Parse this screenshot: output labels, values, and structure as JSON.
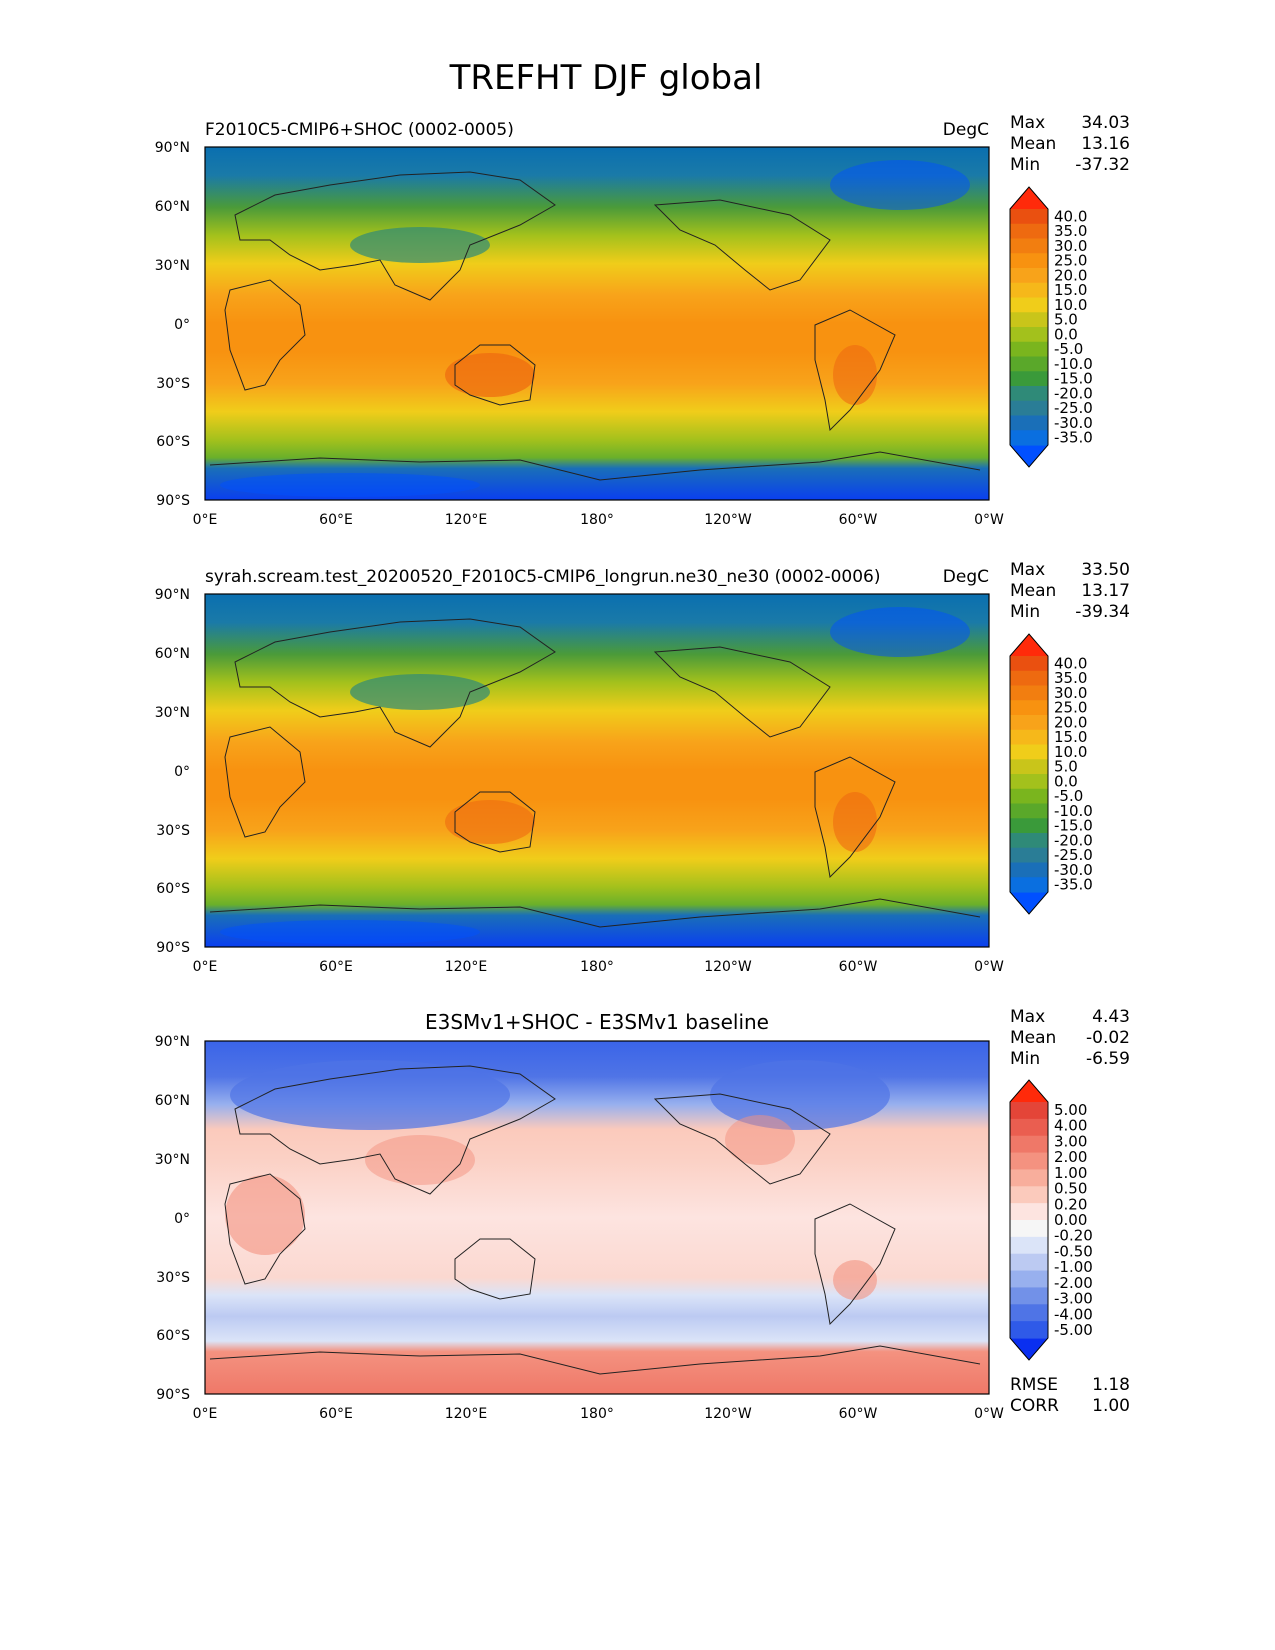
{
  "figure": {
    "title": "TREFHT DJF global"
  },
  "axis_ticks": {
    "lat": [
      "90°N",
      "60°N",
      "30°N",
      "0°",
      "30°S",
      "60°S",
      "90°S"
    ],
    "lon": [
      "0°E",
      "60°E",
      "120°E",
      "180°",
      "120°W",
      "60°W",
      "0°W"
    ]
  },
  "colors": {
    "abs_levels": [
      "#0050ff",
      "#0a6fe0",
      "#1a6fb8",
      "#2a7d96",
      "#2f8a78",
      "#3a9a3a",
      "#5aa82a",
      "#7ab51e",
      "#a3c11c",
      "#c9c51a",
      "#f0cd1a",
      "#f6b81a",
      "#f8a31a",
      "#f89210",
      "#f27e10",
      "#ee6a10",
      "#ea5010",
      "#ff2a0a"
    ],
    "diff_levels": [
      "#0a2ff0",
      "#2f5ae8",
      "#4f74e6",
      "#7291e8",
      "#98b0ee",
      "#bccaf2",
      "#dbe4f8",
      "#f6f6f6",
      "#fde4e0",
      "#fbcabc",
      "#f8ae9c",
      "#f49280",
      "#ef7868",
      "#ea5e50",
      "#e44538",
      "#ff2a0a"
    ]
  },
  "panels": [
    {
      "left_title": "F2010C5-CMIP6+SHOC (0002-0005)",
      "center_title": "",
      "units": "DegC",
      "stats": {
        "max": "34.03",
        "mean": "13.16",
        "min": "-37.32"
      },
      "colorbar_ticks": [
        "40.0",
        "35.0",
        "30.0",
        "25.0",
        "20.0",
        "15.0",
        "10.0",
        "5.0",
        "0.0",
        "-5.0",
        "-10.0",
        "-15.0",
        "-20.0",
        "-25.0",
        "-30.0",
        "-35.0"
      ]
    },
    {
      "left_title": "syrah.scream.test_20200520_F2010C5-CMIP6_longrun.ne30_ne30 (0002-0006)",
      "center_title": "",
      "units": "DegC",
      "stats": {
        "max": "33.50",
        "mean": "13.17",
        "min": "-39.34"
      },
      "colorbar_ticks": [
        "40.0",
        "35.0",
        "30.0",
        "25.0",
        "20.0",
        "15.0",
        "10.0",
        "5.0",
        "0.0",
        "-5.0",
        "-10.0",
        "-15.0",
        "-20.0",
        "-25.0",
        "-30.0",
        "-35.0"
      ]
    },
    {
      "left_title": "",
      "center_title": "E3SMv1+SHOC - E3SMv1 baseline",
      "units": "",
      "stats": {
        "max": "4.43",
        "mean": "-0.02",
        "min": "-6.59"
      },
      "colorbar_ticks": [
        "5.00",
        "4.00",
        "3.00",
        "2.00",
        "1.00",
        "0.50",
        "0.20",
        "0.00",
        "-0.20",
        "-0.50",
        "-1.00",
        "-2.00",
        "-3.00",
        "-4.00",
        "-5.00"
      ],
      "rmse": "1.18",
      "corr": "1.00"
    }
  ],
  "stat_labels": {
    "max": "Max",
    "mean": "Mean",
    "min": "Min",
    "rmse": "RMSE",
    "corr": "CORR"
  },
  "chart_data": [
    {
      "type": "heatmap",
      "title": "F2010C5-CMIP6+SHOC (0002-0005)",
      "variable": "TREFHT DJF",
      "units": "DegC",
      "x_ticks": [
        "0°E",
        "60°E",
        "120°E",
        "180°",
        "120°W",
        "60°W",
        "0°W"
      ],
      "y_ticks": [
        "90°N",
        "60°N",
        "30°N",
        "0°",
        "30°S",
        "60°S",
        "90°S"
      ],
      "lat_band_mean_degC": [
        {
          "lat": 80,
          "value": -25
        },
        {
          "lat": 60,
          "value": -15
        },
        {
          "lat": 45,
          "value": 0
        },
        {
          "lat": 30,
          "value": 12
        },
        {
          "lat": 15,
          "value": 25
        },
        {
          "lat": 0,
          "value": 27
        },
        {
          "lat": -15,
          "value": 27
        },
        {
          "lat": -30,
          "value": 22
        },
        {
          "lat": -45,
          "value": 12
        },
        {
          "lat": -60,
          "value": 2
        },
        {
          "lat": -75,
          "value": -20
        },
        {
          "lat": -85,
          "value": -30
        }
      ],
      "max": 34.03,
      "mean": 13.16,
      "min": -37.32
    },
    {
      "type": "heatmap",
      "title": "syrah.scream.test_20200520_F2010C5-CMIP6_longrun.ne30_ne30 (0002-0006)",
      "variable": "TREFHT DJF",
      "units": "DegC",
      "x_ticks": [
        "0°E",
        "60°E",
        "120°E",
        "180°",
        "120°W",
        "60°W",
        "0°W"
      ],
      "y_ticks": [
        "90°N",
        "60°N",
        "30°N",
        "0°",
        "30°S",
        "60°S",
        "90°S"
      ],
      "lat_band_mean_degC": [
        {
          "lat": 80,
          "value": -25
        },
        {
          "lat": 60,
          "value": -14
        },
        {
          "lat": 45,
          "value": 1
        },
        {
          "lat": 30,
          "value": 12
        },
        {
          "lat": 15,
          "value": 25
        },
        {
          "lat": 0,
          "value": 27
        },
        {
          "lat": -15,
          "value": 27
        },
        {
          "lat": -30,
          "value": 22
        },
        {
          "lat": -45,
          "value": 12
        },
        {
          "lat": -60,
          "value": 2
        },
        {
          "lat": -75,
          "value": -22
        },
        {
          "lat": -85,
          "value": -32
        }
      ],
      "max": 33.5,
      "mean": 13.17,
      "min": -39.34
    },
    {
      "type": "heatmap",
      "title": "E3SMv1+SHOC - E3SMv1 baseline",
      "variable": "TREFHT DJF difference",
      "units": "DegC",
      "x_ticks": [
        "0°E",
        "60°E",
        "120°E",
        "180°",
        "120°W",
        "60°W",
        "0°W"
      ],
      "y_ticks": [
        "90°N",
        "60°N",
        "30°N",
        "0°",
        "30°S",
        "60°S",
        "90°S"
      ],
      "lat_band_mean_degC": [
        {
          "lat": 80,
          "value": -3
        },
        {
          "lat": 60,
          "value": -1.5
        },
        {
          "lat": 45,
          "value": 0.5
        },
        {
          "lat": 30,
          "value": 0.6
        },
        {
          "lat": 15,
          "value": 0.4
        },
        {
          "lat": 0,
          "value": 0.3
        },
        {
          "lat": -15,
          "value": 0.3
        },
        {
          "lat": -30,
          "value": 0.2
        },
        {
          "lat": -45,
          "value": -0.3
        },
        {
          "lat": -60,
          "value": -0.6
        },
        {
          "lat": -75,
          "value": 2
        },
        {
          "lat": -85,
          "value": 3
        }
      ],
      "max": 4.43,
      "mean": -0.02,
      "min": -6.59,
      "rmse": 1.18,
      "corr": 1.0
    }
  ]
}
